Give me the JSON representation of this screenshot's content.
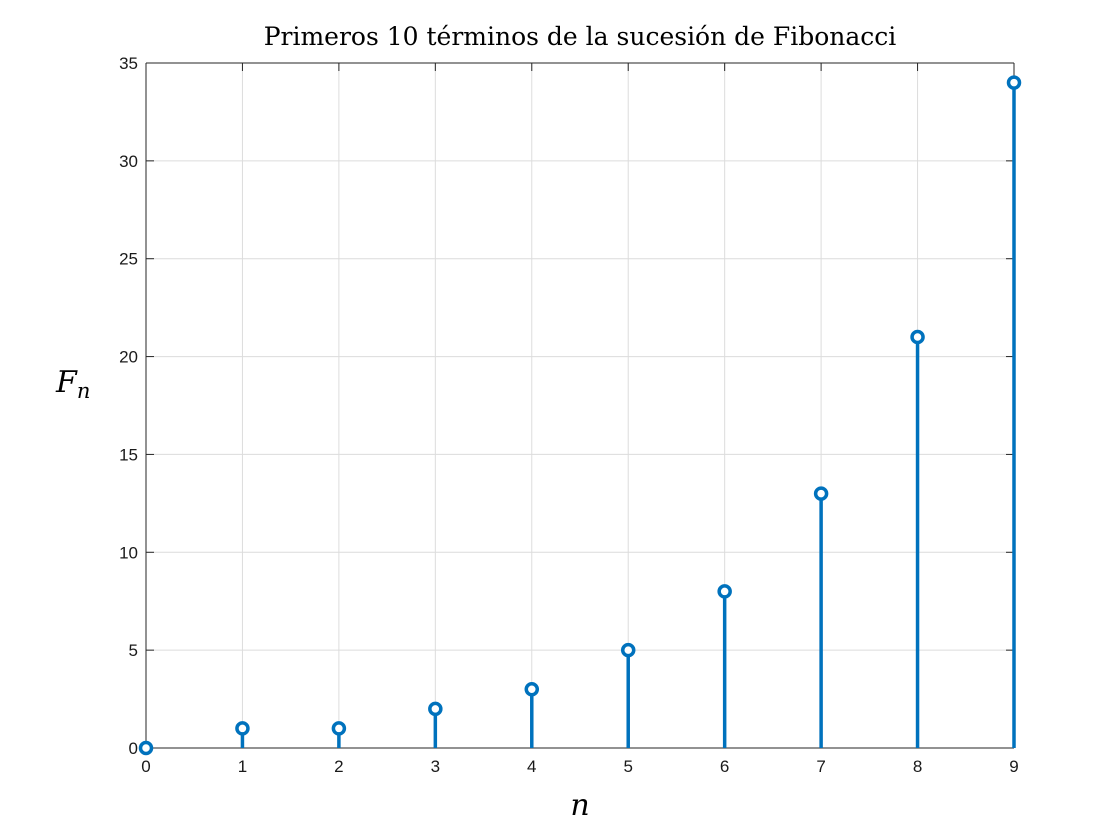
{
  "chart_data": {
    "type": "stem",
    "title": "Primeros 10 términos de la sucesión de Fibonacci",
    "xlabel": "n",
    "ylabel_main": "F",
    "ylabel_sub": "n",
    "x": [
      0,
      1,
      2,
      3,
      4,
      5,
      6,
      7,
      8,
      9
    ],
    "values": [
      0,
      1,
      1,
      2,
      3,
      5,
      8,
      13,
      21,
      34
    ],
    "xlim": [
      0,
      9
    ],
    "ylim": [
      0,
      35
    ],
    "xticks": [
      0,
      1,
      2,
      3,
      4,
      5,
      6,
      7,
      8,
      9
    ],
    "yticks": [
      0,
      5,
      10,
      15,
      20,
      25,
      30,
      35
    ],
    "grid": true,
    "color": "#0072BD"
  }
}
